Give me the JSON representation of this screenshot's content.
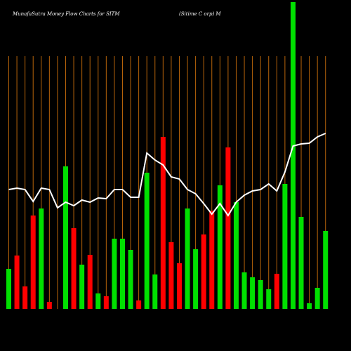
{
  "chart_data": {
    "type": "bar",
    "title": "MunafaSutra  Money Flow  Charts for SITM",
    "subtitle": "(Sitime  C        orp) M",
    "ylim": [
      0,
      440
    ],
    "values": [
      57,
      76,
      32,
      133,
      143,
      10,
      0,
      203,
      115,
      63,
      77,
      22,
      18,
      100,
      100,
      84,
      12,
      194,
      49,
      245,
      95,
      65,
      143,
      85,
      106,
      140,
      176,
      230,
      152,
      52,
      45,
      41,
      28,
      50,
      178,
      437,
      131,
      8,
      30,
      111
    ],
    "colors": [
      "#00e000",
      "#ff0000",
      "#ff0000",
      "#ff0000",
      "#00e000",
      "#ff0000",
      "#ff0000",
      "#00e000",
      "#ff0000",
      "#00e000",
      "#ff0000",
      "#00e000",
      "#ff0000",
      "#00e000",
      "#00e000",
      "#00e000",
      "#ff0000",
      "#00e000",
      "#00e000",
      "#ff0000",
      "#ff0000",
      "#ff0000",
      "#00e000",
      "#00e000",
      "#ff0000",
      "#ff0000",
      "#00e000",
      "#ff0000",
      "#00e000",
      "#00e000",
      "#00e000",
      "#00e000",
      "#00e000",
      "#ff0000",
      "#00e000",
      "#00e000",
      "#00e000",
      "#00e000",
      "#00e000",
      "#00e000"
    ],
    "line": {
      "color": "#ffffff",
      "values": [
        170,
        172,
        170,
        153,
        172,
        170,
        144,
        152,
        147,
        155,
        152,
        158,
        157,
        170,
        170,
        159,
        159,
        222,
        212,
        205,
        188,
        185,
        170,
        164,
        150,
        135,
        150,
        133,
        152,
        162,
        168,
        170,
        178,
        168,
        195,
        232,
        235,
        236,
        245,
        250
      ]
    },
    "grid_color": "#b8640a"
  }
}
